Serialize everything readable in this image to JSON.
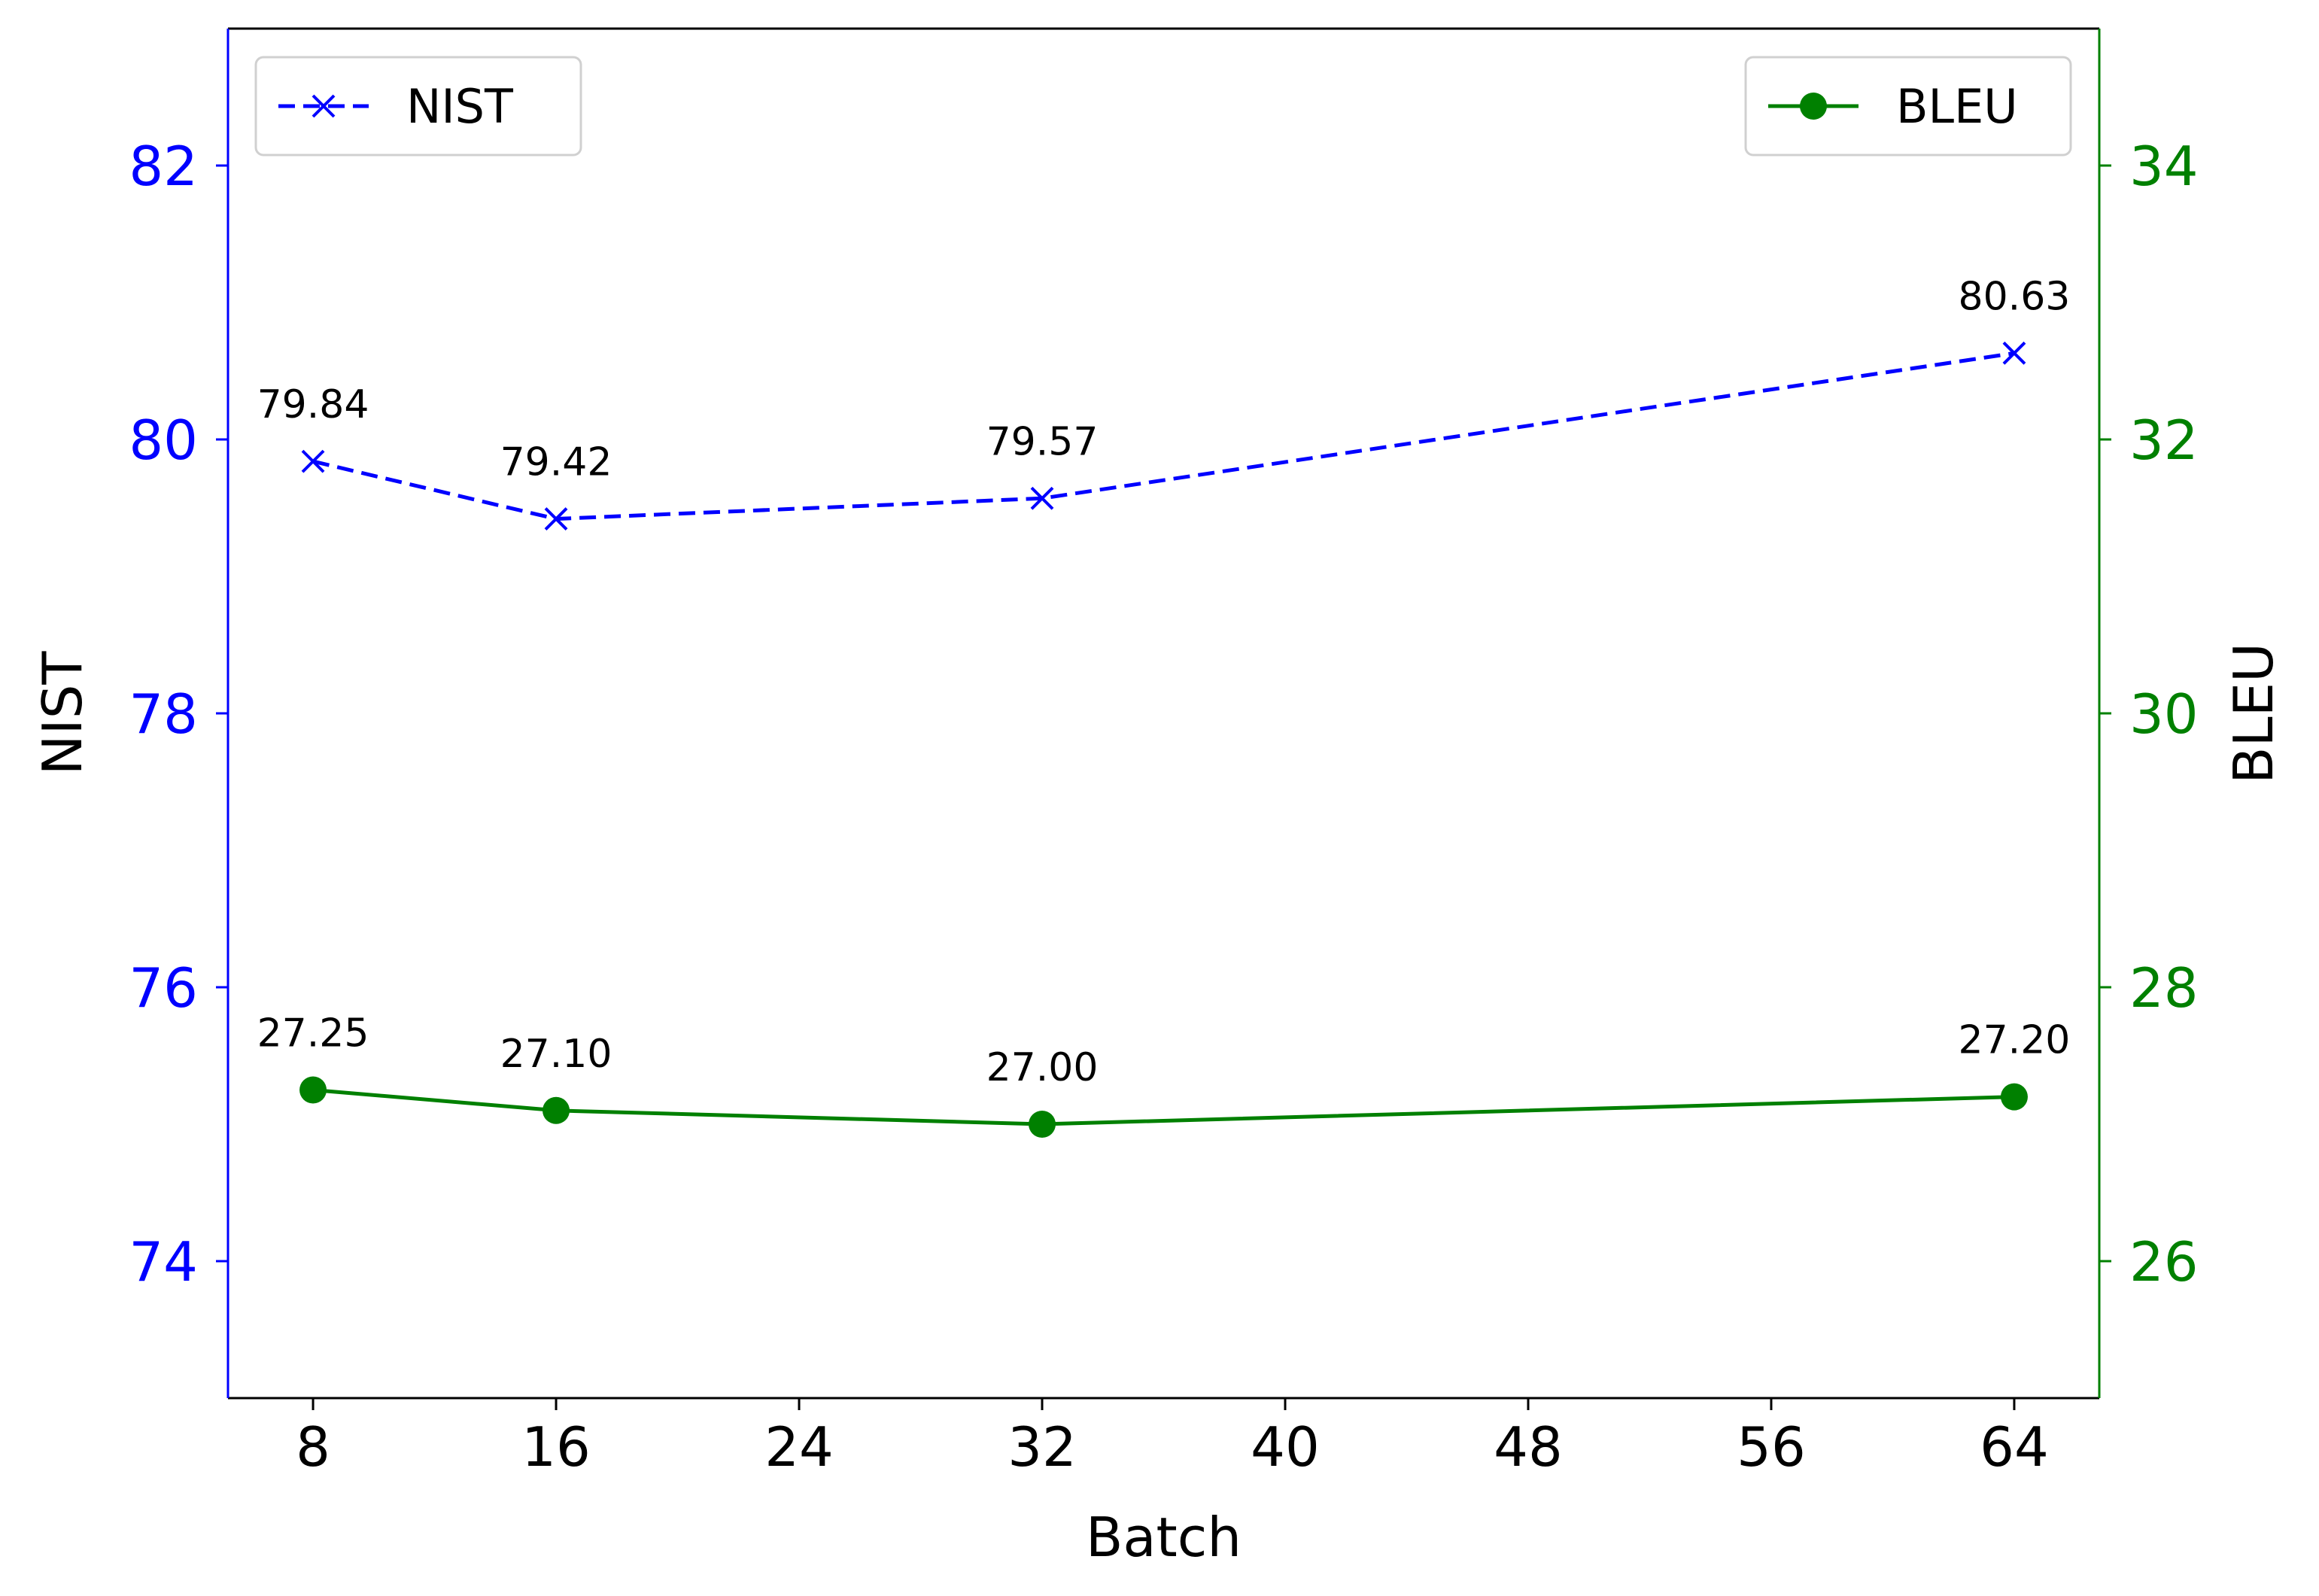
{
  "chart_data": {
    "type": "line",
    "x": [
      8,
      16,
      32,
      64
    ],
    "xlabel": "Batch",
    "xticks": [
      8,
      16,
      24,
      32,
      40,
      48,
      56,
      64
    ],
    "xlim": [
      5.2,
      66.8
    ],
    "series": [
      {
        "name": "NIST",
        "axis": "left",
        "values": [
          79.84,
          79.42,
          79.57,
          80.63
        ],
        "labels": [
          "79.84",
          "79.42",
          "79.57",
          "80.63"
        ],
        "color": "#0000ff",
        "linestyle": "dashed",
        "marker": "x"
      },
      {
        "name": "BLEU",
        "axis": "right",
        "values": [
          27.25,
          27.1,
          27.0,
          27.2
        ],
        "labels": [
          "27.25",
          "27.10",
          "27.00",
          "27.20"
        ],
        "color": "#008000",
        "linestyle": "solid",
        "marker": "circle"
      }
    ],
    "left_axis": {
      "label": "NIST",
      "ylim": [
        73,
        83
      ],
      "ticks": [
        74,
        76,
        78,
        80,
        82
      ],
      "color": "#0000ff"
    },
    "right_axis": {
      "label": "BLEU",
      "ylim": [
        25,
        35
      ],
      "ticks": [
        26,
        28,
        30,
        32,
        34
      ],
      "color": "#008000"
    },
    "legends": [
      {
        "series": "NIST",
        "placement": "top-left"
      },
      {
        "series": "BLEU",
        "placement": "top-right"
      }
    ],
    "grid": false
  }
}
